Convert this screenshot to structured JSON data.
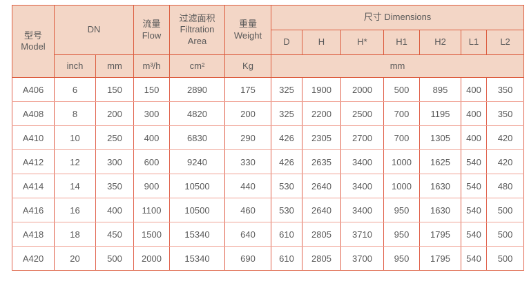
{
  "colors": {
    "header_bg": "#f3d6c6",
    "border_strong": "#dc5b3d",
    "border_vertical": "#e0604a",
    "border_horizontal": "#f0a193",
    "text": "#595959"
  },
  "table": {
    "header": {
      "model": [
        "型号",
        "Model"
      ],
      "dn": "DN",
      "flow": [
        "流量",
        "Flow"
      ],
      "filtration": [
        "过滤面积",
        "Filtration",
        "Area"
      ],
      "weight": [
        "重量",
        "Weight"
      ],
      "dimensions": "尺寸 Dimensions",
      "dimension_columns": [
        "D",
        "H",
        "H*",
        "H1",
        "H2",
        "L1",
        "L2"
      ],
      "units": {
        "inch": "inch",
        "mm": "mm",
        "flow": "m³/h",
        "area": "cm²",
        "weight": "Kg",
        "dimensions": "mm"
      }
    },
    "rows": [
      {
        "model": "A406",
        "values": [
          "6",
          "150",
          "150",
          "2890",
          "175",
          "325",
          "1900",
          "2000",
          "500",
          "895",
          "400",
          "350"
        ]
      },
      {
        "model": "A408",
        "values": [
          "8",
          "200",
          "300",
          "4820",
          "200",
          "325",
          "2200",
          "2500",
          "700",
          "1195",
          "400",
          "350"
        ]
      },
      {
        "model": "A410",
        "values": [
          "10",
          "250",
          "400",
          "6830",
          "290",
          "426",
          "2305",
          "2700",
          "700",
          "1305",
          "400",
          "420"
        ]
      },
      {
        "model": "A412",
        "values": [
          "12",
          "300",
          "600",
          "9240",
          "330",
          "426",
          "2635",
          "3400",
          "1000",
          "1625",
          "540",
          "420"
        ]
      },
      {
        "model": "A414",
        "values": [
          "14",
          "350",
          "900",
          "10500",
          "440",
          "530",
          "2640",
          "3400",
          "1000",
          "1630",
          "540",
          "480"
        ]
      },
      {
        "model": "A416",
        "values": [
          "16",
          "400",
          "1100",
          "10500",
          "460",
          "530",
          "2640",
          "3400",
          "950",
          "1630",
          "540",
          "500"
        ]
      },
      {
        "model": "A418",
        "values": [
          "18",
          "450",
          "1500",
          "15340",
          "640",
          "610",
          "2805",
          "3710",
          "950",
          "1795",
          "540",
          "500"
        ]
      },
      {
        "model": "A420",
        "values": [
          "20",
          "500",
          "2000",
          "15340",
          "690",
          "610",
          "2805",
          "3700",
          "950",
          "1795",
          "540",
          "500"
        ]
      }
    ]
  }
}
